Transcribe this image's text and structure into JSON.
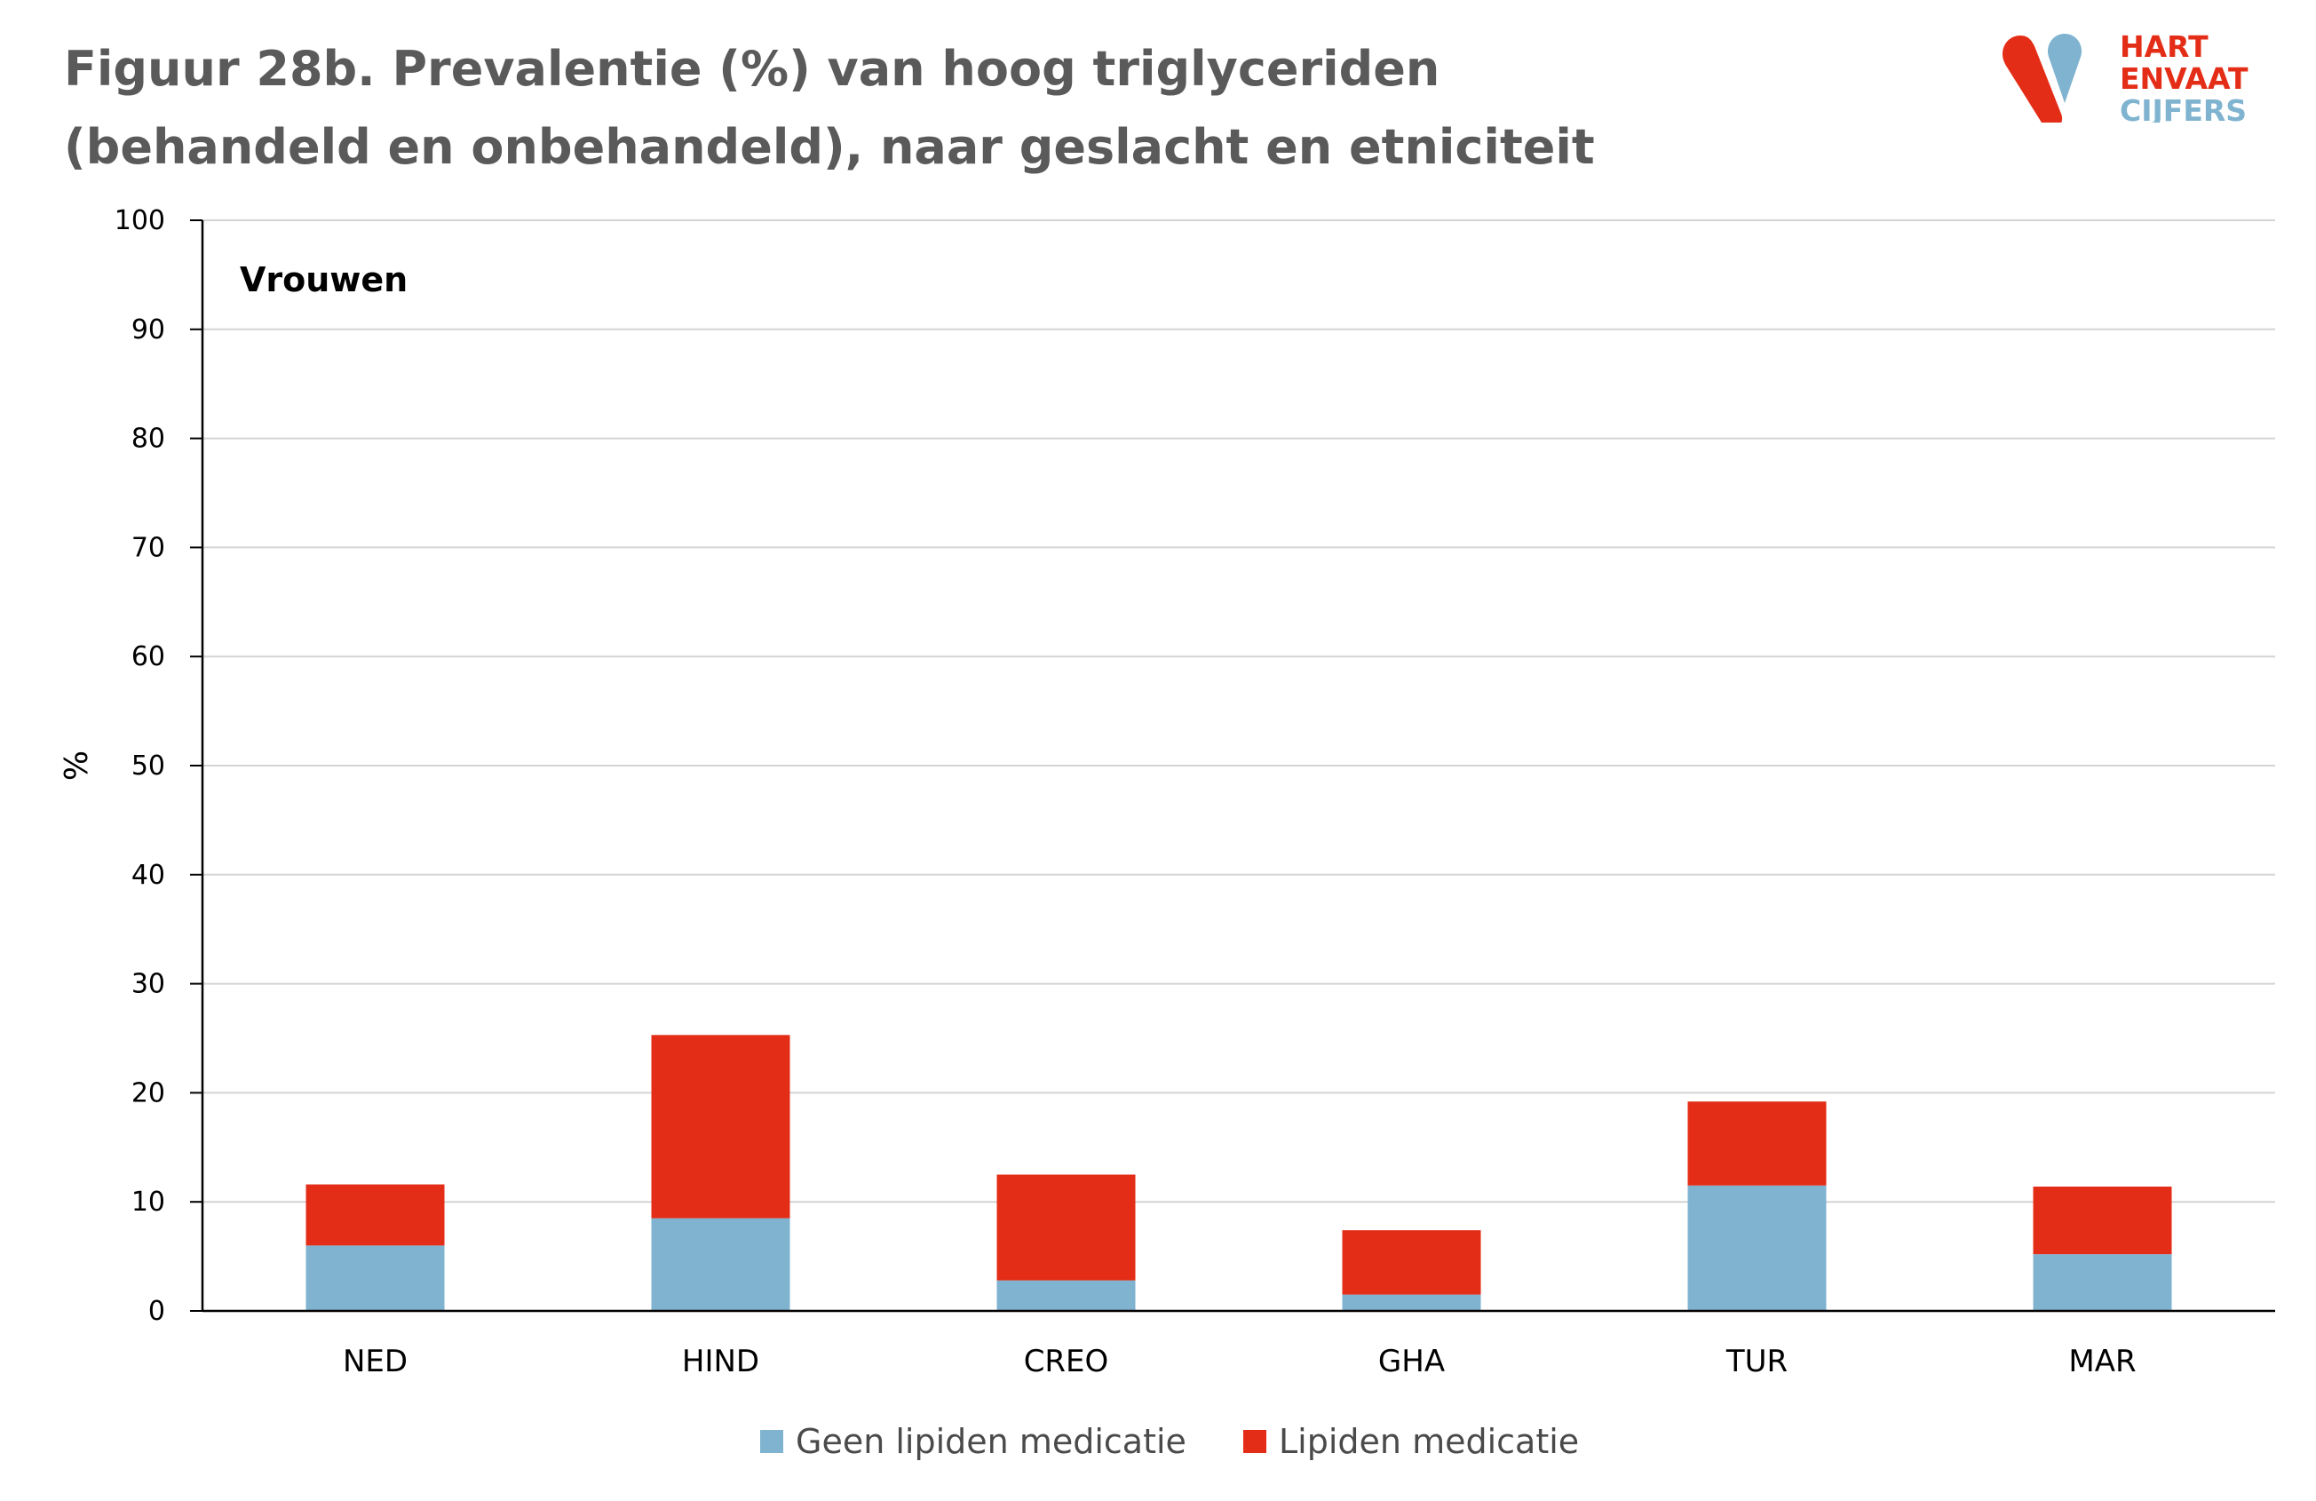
{
  "title": "Figuur 28b. Prevalentie (%) van hoog triglyceriden (behandeld en onbehandeld), naar geslacht en etniciteit",
  "logo": {
    "line1": "HART",
    "line2a": "EN",
    "line2b": "VAAT",
    "line3": "CIJFERS"
  },
  "colors": {
    "blue": "#7fb3d0",
    "red": "#e42d17",
    "logo_red": "#e42d17",
    "logo_blue": "#7fb3d0"
  },
  "chart_data": {
    "type": "bar",
    "stacked": true,
    "panel_label": "Vrouwen",
    "categories": [
      "NED",
      "HIND",
      "CREO",
      "GHA",
      "TUR",
      "MAR"
    ],
    "series": [
      {
        "name": "Geen lipiden medicatie",
        "color": "#7fb3d0",
        "values": [
          6.0,
          8.5,
          2.8,
          1.5,
          11.5,
          5.2
        ]
      },
      {
        "name": "Lipiden medicatie",
        "color": "#e42d17",
        "values": [
          5.6,
          16.8,
          9.7,
          5.9,
          7.7,
          6.2
        ]
      }
    ],
    "ylabel": "%",
    "xlabel": "",
    "ylim": [
      0,
      100
    ],
    "yticks": [
      "0",
      "10",
      "20",
      "30",
      "40",
      "50",
      "60",
      "70",
      "80",
      "90",
      "100"
    ],
    "grid": true,
    "legend_position": "bottom"
  }
}
